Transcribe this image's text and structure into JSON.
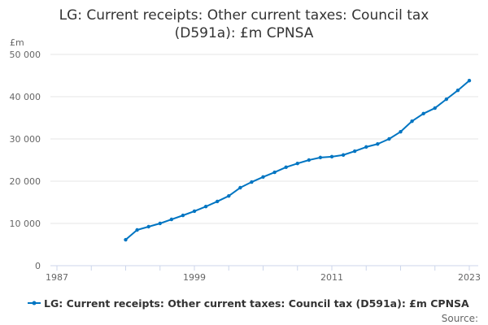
{
  "chart_data": {
    "type": "line",
    "title_lines": [
      "LG: Current receipts: Other current taxes: Council tax",
      "(D591a): £m CPNSA"
    ],
    "ylabel": "£m",
    "xlabel": "",
    "ylim": [
      0,
      50000
    ],
    "xlim": [
      1987,
      2023
    ],
    "y_ticks": [
      0,
      10000,
      20000,
      30000,
      40000,
      50000
    ],
    "y_tick_labels": [
      "0",
      "10 000",
      "20 000",
      "30 000",
      "40 000",
      "50 000"
    ],
    "x_ticks": [
      1987,
      1999,
      2011,
      2023
    ],
    "x_tick_labels": [
      "1987",
      "1999",
      "2011",
      "2023"
    ],
    "grid": true,
    "legend_position": "bottom",
    "series": [
      {
        "name": "LG: Current receipts: Other current taxes: Council tax (D591a): £m CPNSA",
        "color": "#0075c2",
        "x": [
          1993,
          1994,
          1995,
          1996,
          1997,
          1998,
          1999,
          2000,
          2001,
          2002,
          2003,
          2004,
          2005,
          2006,
          2007,
          2008,
          2009,
          2010,
          2011,
          2012,
          2013,
          2014,
          2015,
          2016,
          2017,
          2018,
          2019,
          2020,
          2021,
          2022,
          2023
        ],
        "values": [
          6150,
          8460,
          9230,
          10000,
          10960,
          11900,
          12900,
          14000,
          15200,
          16500,
          18460,
          19800,
          21000,
          22100,
          23300,
          24200,
          25000,
          25600,
          25800,
          26200,
          27100,
          28100,
          28800,
          30000,
          31700,
          34200,
          36000,
          37300,
          39400,
          41500,
          43800
        ]
      }
    ],
    "source_label": "Source:"
  }
}
